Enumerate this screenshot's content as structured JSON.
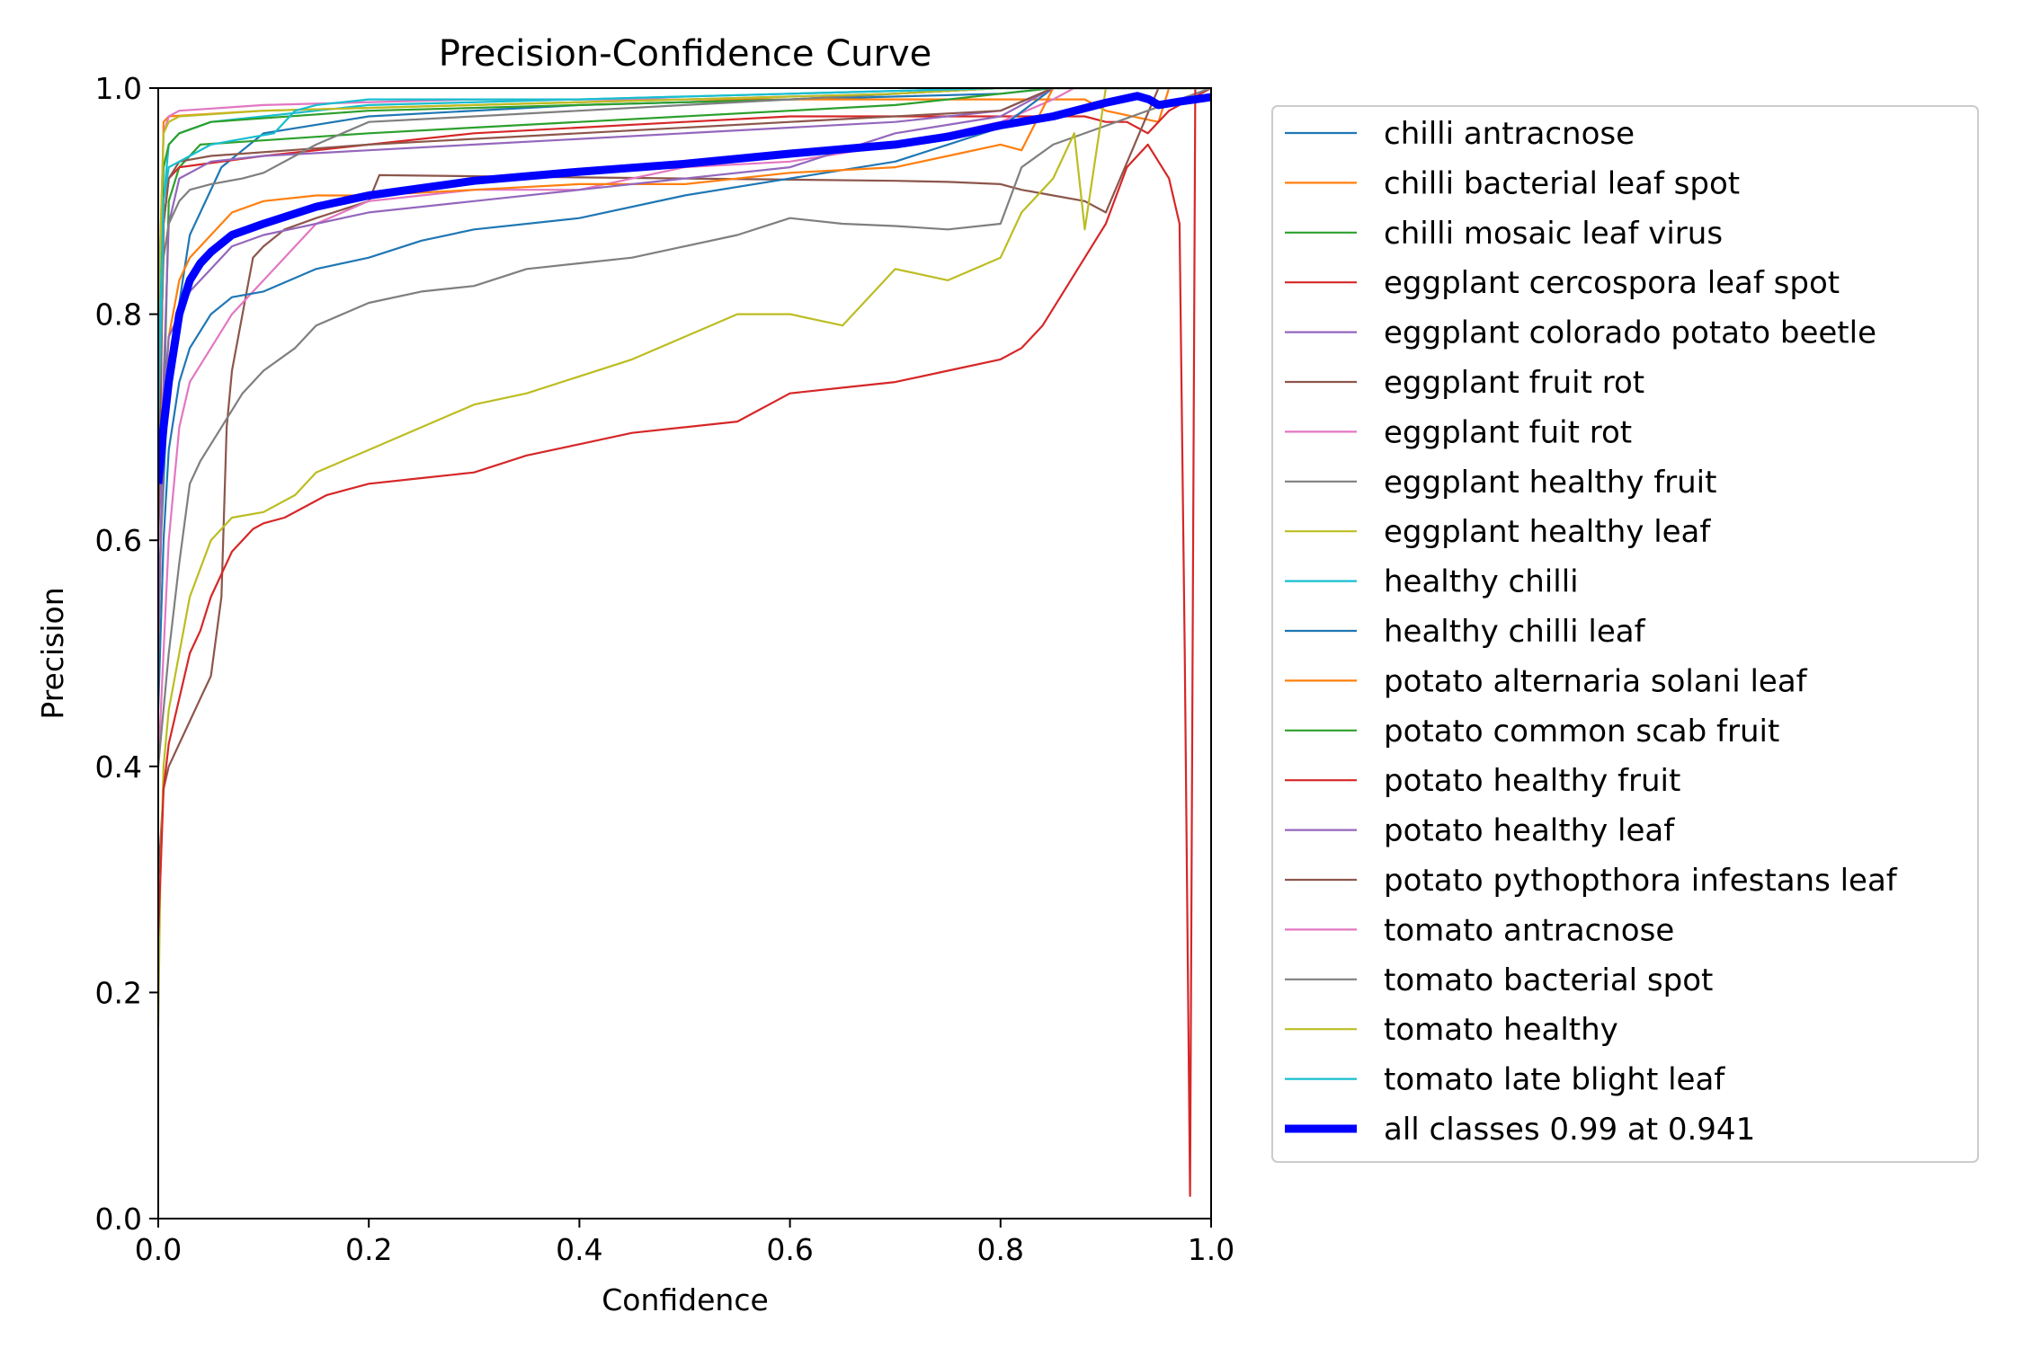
{
  "chart_data": {
    "type": "line",
    "title": "Precision-Confidence Curve",
    "xlabel": "Confidence",
    "ylabel": "Precision",
    "xlim": [
      0,
      1
    ],
    "ylim": [
      0,
      1
    ],
    "xticks": [
      "0.0",
      "0.2",
      "0.4",
      "0.6",
      "0.8",
      "1.0"
    ],
    "yticks": [
      "0.0",
      "0.2",
      "0.4",
      "0.6",
      "0.8",
      "1.0"
    ],
    "grid": false,
    "legend_position": "outside-right",
    "series": [
      {
        "name": "chilli antracnose",
        "color": "#1f77b4",
        "width": 1,
        "x": [
          0,
          0.01,
          0.03,
          0.06,
          0.1,
          0.2,
          0.4,
          0.6,
          0.8,
          0.85,
          1
        ],
        "y": [
          0.55,
          0.75,
          0.87,
          0.93,
          0.96,
          0.975,
          0.985,
          0.99,
          0.995,
          1.0,
          1.0
        ]
      },
      {
        "name": "chilli bacterial leaf spot",
        "color": "#ff7f0e",
        "width": 1,
        "x": [
          0,
          0.005,
          0.01,
          0.1,
          0.3,
          0.5,
          0.7,
          0.8,
          0.88,
          0.9,
          0.95,
          0.96,
          1
        ],
        "y": [
          0.7,
          0.97,
          0.975,
          0.98,
          0.985,
          0.99,
          0.99,
          0.99,
          0.99,
          0.98,
          0.97,
          1.0,
          1.0
        ]
      },
      {
        "name": "chilli mosaic leaf virus",
        "color": "#2ca02c",
        "width": 1,
        "x": [
          0,
          0.01,
          0.02,
          0.04,
          0.2,
          0.4,
          0.6,
          0.7,
          0.8,
          0.85,
          1
        ],
        "y": [
          0.5,
          0.9,
          0.93,
          0.95,
          0.96,
          0.97,
          0.98,
          0.985,
          0.995,
          1.0,
          1.0
        ]
      },
      {
        "name": "eggplant cercospora leaf spot",
        "color": "#d62728",
        "width": 1,
        "x": [
          0,
          0.005,
          0.01,
          0.02,
          0.1,
          0.2,
          0.3,
          0.4,
          0.5,
          0.6,
          0.7,
          0.8,
          0.88,
          0.9,
          0.92,
          0.94,
          0.96,
          1
        ],
        "y": [
          0.6,
          0.88,
          0.92,
          0.93,
          0.94,
          0.95,
          0.96,
          0.965,
          0.97,
          0.975,
          0.975,
          0.975,
          0.975,
          0.97,
          0.97,
          0.96,
          0.98,
          1.0
        ]
      },
      {
        "name": "eggplant colorado potato beetle",
        "color": "#9467bd",
        "width": 1,
        "x": [
          0,
          0.01,
          0.02,
          0.05,
          0.1,
          0.2,
          0.3,
          0.4,
          0.5,
          0.6,
          0.7,
          0.8,
          0.85,
          1
        ],
        "y": [
          0.6,
          0.88,
          0.92,
          0.935,
          0.94,
          0.945,
          0.95,
          0.955,
          0.96,
          0.965,
          0.97,
          0.98,
          1.0,
          1.0
        ]
      },
      {
        "name": "eggplant fruit rot",
        "color": "#8c564b",
        "width": 1,
        "x": [
          0,
          0.005,
          0.01,
          0.02,
          0.03,
          0.04,
          0.05,
          0.06,
          0.065,
          0.07,
          0.08,
          0.09,
          0.1,
          0.12,
          0.15,
          0.2,
          0.21,
          0.3,
          0.4,
          0.5,
          0.6,
          0.7,
          0.75,
          0.8,
          0.82,
          0.85,
          0.88,
          0.9,
          0.95,
          1
        ],
        "y": [
          0.3,
          0.38,
          0.4,
          0.42,
          0.44,
          0.46,
          0.48,
          0.55,
          0.7,
          0.75,
          0.8,
          0.85,
          0.86,
          0.875,
          0.885,
          0.9,
          0.923,
          0.922,
          0.921,
          0.92,
          0.919,
          0.918,
          0.917,
          0.915,
          0.91,
          0.905,
          0.9,
          0.89,
          1.0,
          1.0
        ]
      },
      {
        "name": "eggplant fuit rot",
        "color": "#e377c2",
        "width": 1,
        "x": [
          0,
          0.01,
          0.02,
          0.03,
          0.05,
          0.07,
          0.1,
          0.12,
          0.15,
          0.2,
          0.25,
          0.3,
          0.4,
          0.5,
          0.6,
          0.7,
          0.8,
          0.85,
          0.87,
          1
        ],
        "y": [
          0.4,
          0.6,
          0.7,
          0.74,
          0.77,
          0.8,
          0.83,
          0.85,
          0.88,
          0.9,
          0.905,
          0.91,
          0.91,
          0.93,
          0.935,
          0.95,
          0.97,
          0.99,
          1.0,
          1.0
        ]
      },
      {
        "name": "eggplant healthy fruit",
        "color": "#7f7f7f",
        "width": 1,
        "x": [
          0,
          0.01,
          0.02,
          0.03,
          0.04,
          0.06,
          0.08,
          0.1,
          0.13,
          0.15,
          0.2,
          0.25,
          0.3,
          0.35,
          0.4,
          0.45,
          0.5,
          0.55,
          0.6,
          0.65,
          0.7,
          0.75,
          0.8,
          0.82,
          0.85,
          1
        ],
        "y": [
          0.4,
          0.5,
          0.58,
          0.65,
          0.67,
          0.7,
          0.73,
          0.75,
          0.77,
          0.79,
          0.81,
          0.82,
          0.825,
          0.84,
          0.845,
          0.85,
          0.86,
          0.87,
          0.885,
          0.88,
          0.878,
          0.875,
          0.88,
          0.93,
          0.95,
          1.0
        ]
      },
      {
        "name": "eggplant healthy leaf",
        "color": "#bcbd22",
        "width": 1,
        "x": [
          0,
          0.002,
          0.005,
          0.01,
          0.02,
          0.03,
          0.05,
          0.07,
          0.1,
          0.13,
          0.15,
          0.2,
          0.25,
          0.3,
          0.35,
          0.4,
          0.45,
          0.5,
          0.55,
          0.6,
          0.65,
          0.7,
          0.75,
          0.8,
          0.82,
          0.85,
          0.87,
          0.88,
          0.9,
          1
        ],
        "y": [
          0.17,
          0.3,
          0.4,
          0.45,
          0.5,
          0.55,
          0.6,
          0.62,
          0.625,
          0.64,
          0.66,
          0.68,
          0.7,
          0.72,
          0.73,
          0.745,
          0.76,
          0.78,
          0.8,
          0.8,
          0.79,
          0.84,
          0.83,
          0.85,
          0.89,
          0.92,
          0.96,
          0.875,
          1.0,
          1.0
        ]
      },
      {
        "name": "healthy chilli",
        "color": "#17becf",
        "width": 1,
        "x": [
          0,
          0.005,
          0.01,
          0.02,
          0.05,
          0.1,
          0.15,
          0.2,
          0.4,
          0.6,
          0.8,
          1
        ],
        "y": [
          0.75,
          0.9,
          0.95,
          0.96,
          0.97,
          0.975,
          0.98,
          0.985,
          0.99,
          0.995,
          1.0,
          1.0
        ]
      },
      {
        "name": "healthy chilli leaf",
        "color": "#1f77b4",
        "width": 1,
        "x": [
          0,
          0.005,
          0.01,
          0.02,
          0.03,
          0.05,
          0.07,
          0.1,
          0.15,
          0.2,
          0.25,
          0.3,
          0.4,
          0.5,
          0.6,
          0.7,
          0.75,
          0.8,
          0.85,
          1
        ],
        "y": [
          0.45,
          0.6,
          0.68,
          0.74,
          0.77,
          0.8,
          0.815,
          0.82,
          0.84,
          0.85,
          0.865,
          0.875,
          0.885,
          0.905,
          0.92,
          0.935,
          0.95,
          0.965,
          1.0,
          1.0
        ]
      },
      {
        "name": "potato alternaria solani leaf",
        "color": "#ff7f0e",
        "width": 1,
        "x": [
          0,
          0.005,
          0.01,
          0.02,
          0.03,
          0.05,
          0.07,
          0.1,
          0.15,
          0.2,
          0.3,
          0.4,
          0.5,
          0.6,
          0.7,
          0.75,
          0.8,
          0.82,
          0.85,
          1
        ],
        "y": [
          0.5,
          0.7,
          0.78,
          0.83,
          0.85,
          0.87,
          0.89,
          0.9,
          0.905,
          0.905,
          0.91,
          0.915,
          0.915,
          0.925,
          0.93,
          0.94,
          0.95,
          0.945,
          1.0,
          1.0
        ]
      },
      {
        "name": "potato common scab fruit",
        "color": "#2ca02c",
        "width": 1,
        "x": [
          0,
          0.005,
          0.01,
          0.02,
          0.05,
          0.2,
          0.4,
          0.6,
          0.8,
          1
        ],
        "y": [
          0.8,
          0.93,
          0.95,
          0.96,
          0.97,
          0.98,
          0.985,
          0.99,
          1.0,
          1.0
        ]
      },
      {
        "name": "potato healthy fruit",
        "color": "#d62728",
        "width": 1,
        "x": [
          0,
          0.005,
          0.01,
          0.02,
          0.03,
          0.04,
          0.05,
          0.06,
          0.07,
          0.08,
          0.09,
          0.1,
          0.12,
          0.14,
          0.16,
          0.2,
          0.25,
          0.3,
          0.35,
          0.4,
          0.45,
          0.5,
          0.55,
          0.6,
          0.65,
          0.7,
          0.75,
          0.8,
          0.82,
          0.84,
          0.86,
          0.88,
          0.9,
          0.92,
          0.94,
          0.96,
          0.97,
          0.975,
          0.98,
          0.985,
          1
        ],
        "y": [
          0.25,
          0.38,
          0.42,
          0.46,
          0.5,
          0.52,
          0.55,
          0.57,
          0.59,
          0.6,
          0.61,
          0.615,
          0.62,
          0.63,
          0.64,
          0.65,
          0.655,
          0.66,
          0.675,
          0.685,
          0.695,
          0.7,
          0.705,
          0.73,
          0.735,
          0.74,
          0.75,
          0.76,
          0.77,
          0.79,
          0.82,
          0.85,
          0.88,
          0.93,
          0.95,
          0.92,
          0.88,
          0.5,
          0.02,
          1.0,
          1.0
        ]
      },
      {
        "name": "potato healthy leaf",
        "color": "#9467bd",
        "width": 1,
        "x": [
          0,
          0.005,
          0.01,
          0.02,
          0.03,
          0.05,
          0.07,
          0.1,
          0.15,
          0.2,
          0.3,
          0.4,
          0.5,
          0.6,
          0.7,
          0.8,
          0.85,
          1
        ],
        "y": [
          0.5,
          0.72,
          0.78,
          0.8,
          0.82,
          0.84,
          0.86,
          0.87,
          0.88,
          0.89,
          0.9,
          0.91,
          0.92,
          0.93,
          0.96,
          0.975,
          1.0,
          1.0
        ]
      },
      {
        "name": "potato pythopthora infestans leaf",
        "color": "#8c564b",
        "width": 1,
        "x": [
          0,
          0.005,
          0.01,
          0.02,
          0.05,
          0.2,
          0.4,
          0.6,
          0.8,
          0.85,
          1
        ],
        "y": [
          0.6,
          0.88,
          0.92,
          0.935,
          0.94,
          0.95,
          0.96,
          0.97,
          0.98,
          1.0,
          1.0
        ]
      },
      {
        "name": "tomato antracnose",
        "color": "#e377c2",
        "width": 1,
        "x": [
          0,
          0.005,
          0.01,
          0.02,
          0.1,
          0.3,
          0.5,
          0.7,
          0.8,
          0.85,
          1
        ],
        "y": [
          0.8,
          0.96,
          0.975,
          0.98,
          0.985,
          0.99,
          0.99,
          0.995,
          1.0,
          1.0,
          1.0
        ]
      },
      {
        "name": "tomato bacterial spot",
        "color": "#7f7f7f",
        "width": 1,
        "x": [
          0,
          0.005,
          0.01,
          0.02,
          0.03,
          0.05,
          0.08,
          0.1,
          0.15,
          0.2,
          0.3,
          0.4,
          0.5,
          0.6,
          0.7,
          0.8,
          0.85,
          1
        ],
        "y": [
          0.7,
          0.85,
          0.88,
          0.9,
          0.91,
          0.915,
          0.92,
          0.925,
          0.95,
          0.97,
          0.975,
          0.98,
          0.985,
          0.99,
          0.995,
          1.0,
          1.0,
          1.0
        ]
      },
      {
        "name": "tomato healthy",
        "color": "#bcbd22",
        "width": 1,
        "x": [
          0,
          0.005,
          0.01,
          0.02,
          0.1,
          0.3,
          0.5,
          0.7,
          0.8,
          1
        ],
        "y": [
          0.8,
          0.96,
          0.97,
          0.975,
          0.98,
          0.985,
          0.99,
          0.995,
          1.0,
          1.0
        ]
      },
      {
        "name": "tomato late blight leaf",
        "color": "#17becf",
        "width": 1,
        "x": [
          0,
          0.005,
          0.01,
          0.02,
          0.03,
          0.05,
          0.08,
          0.11,
          0.13,
          0.15,
          0.2,
          0.4,
          0.6,
          0.8,
          1
        ],
        "y": [
          0.7,
          0.9,
          0.93,
          0.935,
          0.94,
          0.95,
          0.955,
          0.96,
          0.98,
          0.985,
          0.99,
          0.99,
          0.995,
          1.0,
          1.0
        ]
      },
      {
        "name": "all classes 0.99 at 0.941",
        "color": "#0000ff",
        "width": 3,
        "x": [
          0,
          0.005,
          0.01,
          0.02,
          0.03,
          0.04,
          0.05,
          0.07,
          0.1,
          0.15,
          0.2,
          0.3,
          0.4,
          0.5,
          0.6,
          0.7,
          0.75,
          0.8,
          0.85,
          0.9,
          0.93,
          0.941,
          0.95,
          0.97,
          1.0
        ],
        "y": [
          0.65,
          0.7,
          0.74,
          0.8,
          0.83,
          0.845,
          0.855,
          0.87,
          0.88,
          0.895,
          0.905,
          0.918,
          0.926,
          0.933,
          0.942,
          0.95,
          0.957,
          0.967,
          0.975,
          0.987,
          0.993,
          0.99,
          0.985,
          0.988,
          0.992
        ]
      }
    ]
  }
}
